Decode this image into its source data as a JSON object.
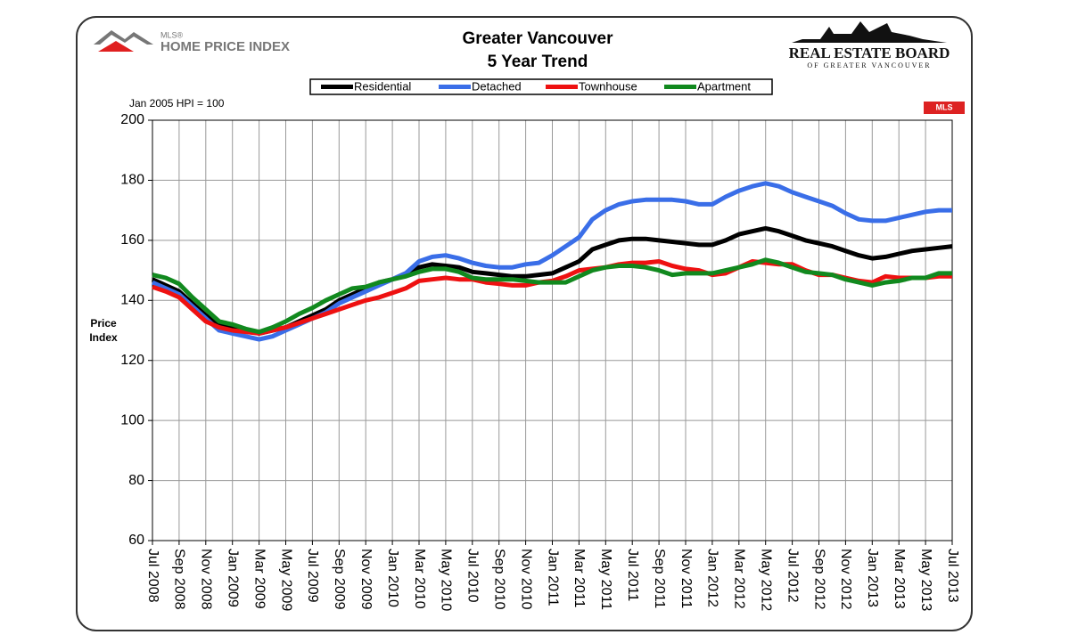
{
  "chart_data": {
    "type": "line",
    "title": "Greater Vancouver",
    "subtitle": "5 Year Trend",
    "note": "Jan 2005 HPI = 100",
    "ylabel": [
      "Price",
      "Index"
    ],
    "categories": [
      "Jul 2008",
      null,
      "Sep 2008",
      null,
      "Nov 2008",
      null,
      "Jan 2009",
      null,
      "Mar 2009",
      null,
      "May 2009",
      null,
      "Jul 2009",
      null,
      "Sep 2009",
      null,
      "Nov 2009",
      null,
      "Jan 2010",
      null,
      "Mar 2010",
      null,
      "May 2010",
      null,
      "Jul 2010",
      null,
      "Sep 2010",
      null,
      "Nov 2010",
      null,
      "Jan 2011",
      null,
      "Mar 2011",
      null,
      "May 2011",
      null,
      "Jul 2011",
      null,
      "Sep 2011",
      null,
      "Nov 2011",
      null,
      "Jan 2012",
      null,
      "Mar 2012",
      null,
      "May 2012",
      null,
      "Jul 2012",
      null,
      "Sep 2012",
      null,
      "Nov 2012",
      null,
      "Jan 2013",
      null,
      "Mar 2013",
      null,
      "May 2013",
      null,
      "Jul 2013"
    ],
    "series": [
      {
        "name": "Residential",
        "color": "#000000",
        "values": [
          147,
          145,
          143,
          139,
          135,
          132,
          131,
          130,
          129,
          130,
          131,
          133,
          135,
          137,
          140,
          142,
          144,
          146,
          147,
          149,
          151,
          152,
          151.5,
          151,
          149.5,
          149,
          148.5,
          148,
          148,
          148.5,
          149,
          151,
          153,
          157,
          158.5,
          160,
          160.5,
          160.5,
          160,
          159.5,
          159,
          158.5,
          158.5,
          160,
          162,
          163,
          164,
          163,
          161.5,
          160,
          159,
          158,
          156.5,
          155,
          154,
          154.5,
          155.5,
          156.5,
          157,
          157.5,
          158
        ]
      },
      {
        "name": "Detached",
        "color": "#3a6ee8",
        "values": [
          146,
          144,
          142,
          138,
          134,
          130,
          129,
          128,
          127,
          128,
          130,
          132,
          134,
          136,
          139,
          141,
          143,
          145,
          147,
          149,
          153,
          154.5,
          155,
          154,
          152.5,
          151.5,
          151,
          151,
          152,
          152.5,
          155,
          158,
          161,
          167,
          170,
          172,
          173,
          173.5,
          173.5,
          173.5,
          173,
          172,
          172,
          174.5,
          176.5,
          178,
          179,
          178,
          176,
          174.5,
          173,
          171.5,
          169,
          167,
          166.5,
          166.5,
          167.5,
          168.5,
          169.5,
          170,
          170
        ]
      },
      {
        "name": "Townhouse",
        "color": "#ee1111",
        "values": [
          144.5,
          143,
          141,
          137,
          133,
          131,
          130,
          129.5,
          129,
          130,
          131,
          132.5,
          134,
          135.5,
          137,
          138.5,
          140,
          141,
          142.5,
          144,
          146.5,
          147,
          147.5,
          147,
          147,
          146,
          145.5,
          145,
          145,
          146,
          146.5,
          148,
          150,
          150.5,
          151,
          152,
          152.5,
          152.5,
          153,
          151.5,
          150.5,
          150,
          148.5,
          149,
          151,
          153,
          152.5,
          152,
          152,
          150,
          148.5,
          148.5,
          147.5,
          146.5,
          146,
          148,
          147.5,
          147.5,
          147.5,
          148,
          148
        ]
      },
      {
        "name": "Apartment",
        "color": "#11891e",
        "values": [
          148.5,
          147.5,
          145.5,
          141,
          137,
          133,
          132,
          130.5,
          129.5,
          131,
          133,
          135.5,
          137.5,
          140,
          142,
          144,
          144.5,
          146,
          147,
          148,
          149.5,
          150.5,
          150.5,
          149.5,
          147.5,
          147,
          147,
          147,
          146.5,
          146,
          146,
          146,
          148,
          150,
          151,
          151.5,
          151.5,
          151,
          150,
          148.5,
          149,
          149,
          149,
          150,
          151,
          152,
          153.5,
          152.5,
          151,
          149.5,
          149,
          148.5,
          147,
          146,
          145,
          146,
          146.5,
          147.5,
          147.5,
          149,
          149
        ]
      }
    ],
    "ylim": [
      60,
      200
    ],
    "yticks": [
      60,
      80,
      100,
      120,
      140,
      160,
      180,
      200
    ],
    "grid": true
  },
  "logos": {
    "hpi_small": "MLS®",
    "hpi": "HOME PRICE INDEX",
    "board": "REAL ESTATE BOARD",
    "board_sub": "OF GREATER VANCOUVER",
    "mls": "MLS"
  }
}
